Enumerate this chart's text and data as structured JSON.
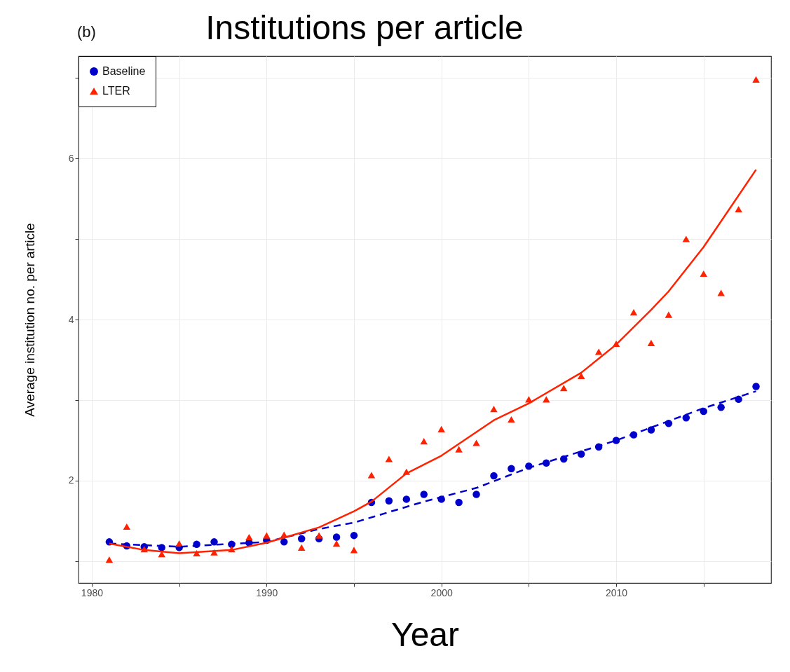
{
  "chart_data": {
    "type": "scatter",
    "title": "Institutions per article",
    "xlabel": "Year",
    "ylabel": "Average institution no. per article",
    "annotations": [
      "(b)"
    ],
    "x": [
      1981,
      1982,
      1983,
      1984,
      1985,
      1986,
      1987,
      1988,
      1989,
      1990,
      1991,
      1992,
      1993,
      1994,
      1995,
      1996,
      1997,
      1998,
      1999,
      2000,
      2001,
      2002,
      2003,
      2004,
      2005,
      2006,
      2007,
      2008,
      2009,
      2010,
      2011,
      2012,
      2013,
      2014,
      2015,
      2016,
      2017,
      2018
    ],
    "series": [
      {
        "name": "Baseline",
        "color": "#0000cc",
        "marker": "circle",
        "values": [
          1.24,
          1.19,
          1.18,
          1.17,
          1.17,
          1.21,
          1.24,
          1.21,
          1.23,
          1.26,
          1.24,
          1.28,
          1.28,
          1.3,
          1.32,
          1.73,
          1.75,
          1.77,
          1.83,
          1.77,
          1.73,
          1.83,
          2.06,
          2.15,
          2.18,
          2.22,
          2.27,
          2.33,
          2.42,
          2.5,
          2.57,
          2.63,
          2.71,
          2.78,
          2.86,
          2.91,
          3.01,
          3.17
        ]
      },
      {
        "name": "LTER",
        "color": "#ff2200",
        "marker": "triangle",
        "values": [
          1.02,
          1.43,
          1.15,
          1.09,
          1.22,
          1.1,
          1.11,
          1.15,
          1.3,
          1.32,
          1.33,
          1.17,
          1.32,
          1.22,
          1.14,
          2.07,
          2.27,
          2.11,
          2.49,
          2.64,
          2.39,
          2.47,
          2.89,
          2.76,
          3.01,
          3.01,
          3.15,
          3.3,
          3.6,
          3.7,
          4.09,
          3.71,
          4.06,
          5.0,
          4.57,
          4.33,
          5.37,
          6.98
        ]
      },
      {
        "type": "line",
        "color": "#0000cc",
        "line_style": "dashed",
        "x": [
          1981,
          1985,
          1990,
          1993,
          1995,
          1999,
          2002,
          2005,
          2010,
          2015,
          2018
        ],
        "values": [
          1.22,
          1.18,
          1.24,
          1.4,
          1.48,
          1.74,
          1.91,
          2.16,
          2.5,
          2.9,
          3.11
        ]
      },
      {
        "type": "line",
        "color": "#ff2200",
        "line_style": "solid",
        "x": [
          1981,
          1983,
          1985,
          1988,
          1990,
          1993,
          1995,
          1996,
          1998,
          2000,
          2003,
          2005,
          2008,
          2010,
          2012,
          2013,
          2015,
          2018
        ],
        "values": [
          1.22,
          1.14,
          1.1,
          1.14,
          1.23,
          1.42,
          1.62,
          1.74,
          2.09,
          2.31,
          2.75,
          2.96,
          3.34,
          3.69,
          4.12,
          4.35,
          4.9,
          5.86
        ]
      }
    ],
    "xlim": [
      1979.24,
      2018.86
    ],
    "ylim": [
      0.73,
      7.27
    ],
    "xticks": [
      1980,
      {
        "value": 1985,
        "label": null
      },
      1990,
      {
        "value": 1995,
        "label": null
      },
      2000,
      {
        "value": 2005,
        "label": null
      },
      2010,
      {
        "value": 2015,
        "label": null
      }
    ],
    "yticks": [
      {
        "value": 1,
        "label": null
      },
      2,
      {
        "value": 3,
        "label": null
      },
      4,
      {
        "value": 5,
        "label": null
      },
      6,
      {
        "value": 7,
        "label": null
      }
    ],
    "grid": true,
    "legend": "top left"
  }
}
